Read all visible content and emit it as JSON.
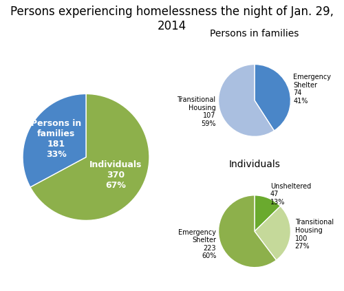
{
  "chart_data": [
    {
      "type": "pie",
      "title": "Persons experiencing homelessness the night of Jan. 29, 2014",
      "categories": [
        "Individuals\n370\n67%",
        "Persons in\nfamilies\n181\n33%"
      ],
      "values": [
        370,
        181
      ],
      "colors": [
        "#8db04b",
        "#4a86c8"
      ]
    },
    {
      "type": "pie",
      "title": "Individuals",
      "categories": [
        "Unsheltered\n47\n13%",
        "Transitional\nHousing\n100\n27%",
        "Emergency\nShelter\n223\n60%"
      ],
      "values": [
        47,
        100,
        223
      ],
      "colors": [
        "#6aaa2e",
        "#c5d99a",
        "#8db04b"
      ]
    },
    {
      "type": "pie",
      "title": "Persons in families",
      "categories": [
        "Emergency\nShelter\n74\n41%",
        "Transitional\nHousing\n107\n59%"
      ],
      "values": [
        74,
        107
      ],
      "colors": [
        "#4a86c8",
        "#aabfe0"
      ]
    }
  ]
}
